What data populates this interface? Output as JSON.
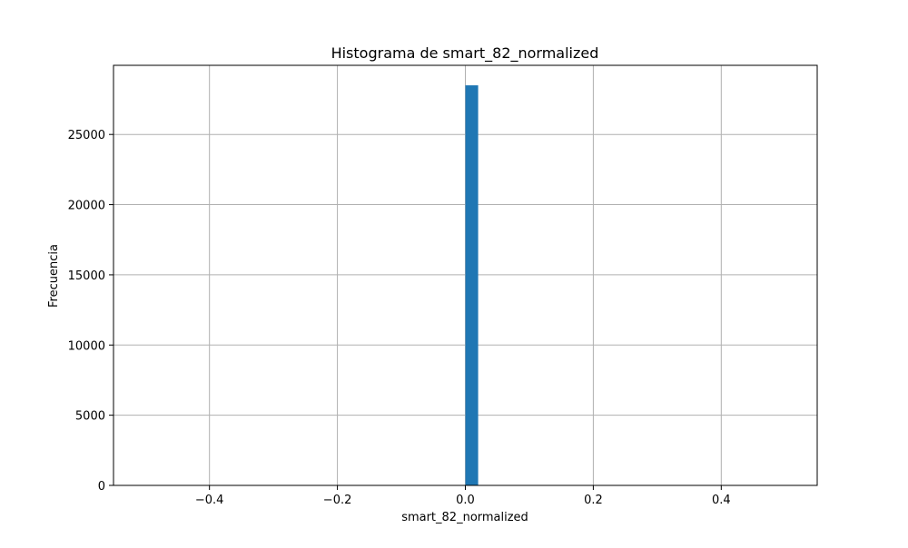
{
  "chart_data": {
    "type": "bar",
    "title": "Histograma de smart_82_normalized",
    "xlabel": "smart_82_normalized",
    "ylabel": "Frecuencia",
    "xlim": [
      -0.55,
      0.55
    ],
    "ylim": [
      0,
      29925
    ],
    "xticks": [
      -0.4,
      -0.2,
      0.0,
      0.2,
      0.4
    ],
    "xtick_labels": [
      "−0.4",
      "−0.2",
      "0.0",
      "0.2",
      "0.4"
    ],
    "yticks": [
      0,
      5000,
      10000,
      15000,
      20000,
      25000
    ],
    "ytick_labels": [
      "0",
      "5000",
      "10000",
      "15000",
      "20000",
      "25000"
    ],
    "grid": true,
    "bins": [
      {
        "x_start": 0.0,
        "x_end": 0.02,
        "count": 28500
      }
    ],
    "colors": {
      "bar": "#1f77b4",
      "grid": "#b0b0b0",
      "axes": "#000000"
    }
  }
}
